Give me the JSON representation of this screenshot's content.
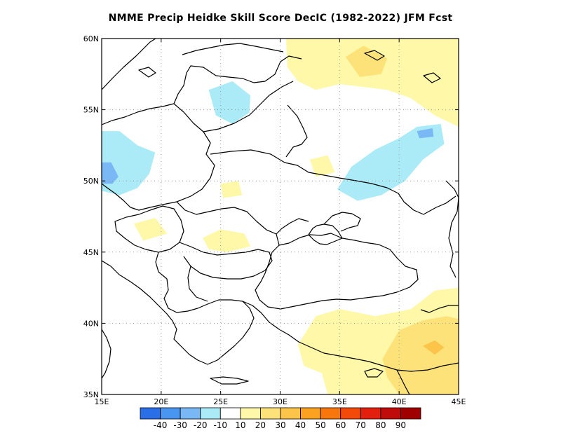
{
  "title": "NMME Precip Heidke Skill Score DecIC (1982-2022) JFM Fcst",
  "lon_ticks": [
    {
      "value": 15,
      "label": "15E"
    },
    {
      "value": 20,
      "label": "20E"
    },
    {
      "value": 25,
      "label": "25E"
    },
    {
      "value": 30,
      "label": "30E"
    },
    {
      "value": 35,
      "label": "35E"
    },
    {
      "value": 40,
      "label": "40E"
    },
    {
      "value": 45,
      "label": "45E"
    }
  ],
  "lat_ticks": [
    {
      "value": 35,
      "label": "35N"
    },
    {
      "value": 40,
      "label": "40N"
    },
    {
      "value": 45,
      "label": "45N"
    },
    {
      "value": 50,
      "label": "50N"
    },
    {
      "value": 55,
      "label": "55N"
    },
    {
      "value": 60,
      "label": "60N"
    }
  ],
  "map_extent": {
    "lon": [
      15,
      45
    ],
    "lat": [
      35,
      60
    ]
  },
  "legend": {
    "colors": [
      "#2b6fe8",
      "#4896f0",
      "#7ab8f5",
      "#aaebf7",
      "#ffffff",
      "#fef8a8",
      "#fde27a",
      "#fcc54a",
      "#fca221",
      "#f9760c",
      "#f34a0a",
      "#e2200d",
      "#c00b0b",
      "#a00000"
    ],
    "labels": [
      "-40",
      "-30",
      "-20",
      "-10",
      "10",
      "20",
      "30",
      "40",
      "50",
      "60",
      "70",
      "80",
      "90"
    ]
  },
  "chart_data": {
    "type": "heatmap",
    "title": "NMME Precip Heidke Skill Score DecIC (1982-2022) JFM Fcst",
    "x_range": [
      15,
      45
    ],
    "y_range": [
      35,
      60
    ],
    "grid": true,
    "regions": [
      {
        "category": "-10..-20",
        "color": "#aaebf7",
        "lon": [
          [
            15,
            53.5
          ],
          [
            16.5,
            53.5
          ],
          [
            18,
            52.5
          ],
          [
            19.5,
            52
          ],
          [
            19,
            50.5
          ],
          [
            18,
            49.5
          ],
          [
            16.5,
            49
          ],
          [
            15,
            49.3
          ]
        ]
      },
      {
        "category": "-20..-30",
        "color": "#7ab8f5",
        "lon": [
          [
            15,
            51.3
          ],
          [
            15.8,
            51.3
          ],
          [
            16.4,
            50.3
          ],
          [
            15.9,
            49.8
          ],
          [
            15,
            49.8
          ]
        ]
      },
      {
        "category": "-10..-20",
        "color": "#aaebf7",
        "lon": [
          [
            24,
            56.4
          ],
          [
            26,
            57
          ],
          [
            27.5,
            56
          ],
          [
            27.4,
            54.8
          ],
          [
            26,
            54
          ],
          [
            24.6,
            54.6
          ]
        ]
      },
      {
        "category": "-10..-20",
        "color": "#aaebf7",
        "lon": [
          [
            34.8,
            49.4
          ],
          [
            36,
            51
          ],
          [
            38,
            52.2
          ],
          [
            40,
            53
          ],
          [
            41.5,
            53.8
          ],
          [
            43.5,
            54
          ],
          [
            43.8,
            52.6
          ],
          [
            42,
            51.5
          ],
          [
            40.5,
            50
          ],
          [
            38.5,
            49
          ],
          [
            36.5,
            48.6
          ]
        ]
      },
      {
        "category": "-20..-30",
        "color": "#7ab8f5",
        "lon": [
          [
            41.5,
            53.5
          ],
          [
            42.8,
            53.7
          ],
          [
            42.9,
            53.1
          ],
          [
            41.7,
            53
          ]
        ]
      },
      {
        "category": "10..20",
        "color": "#fef8a8",
        "lon": [
          [
            30.5,
            60
          ],
          [
            45,
            60
          ],
          [
            45,
            53.8
          ],
          [
            43,
            54.6
          ],
          [
            41,
            55.8
          ],
          [
            39,
            56.4
          ],
          [
            37,
            56.6
          ],
          [
            35,
            56.8
          ],
          [
            33,
            56.4
          ],
          [
            31.5,
            57
          ],
          [
            30.6,
            58
          ]
        ]
      },
      {
        "category": "20..30",
        "color": "#fde27a",
        "lon": [
          [
            35.5,
            58.7
          ],
          [
            37,
            59.5
          ],
          [
            39,
            58.6
          ],
          [
            38.5,
            57.5
          ],
          [
            36.7,
            57.3
          ]
        ]
      },
      {
        "category": "10..20",
        "color": "#fef8a8",
        "lon": [
          [
            33,
            40.5
          ],
          [
            35,
            41
          ],
          [
            38,
            40.5
          ],
          [
            41,
            41
          ],
          [
            43,
            42.3
          ],
          [
            45,
            42.5
          ],
          [
            45,
            35
          ],
          [
            34,
            35
          ],
          [
            33.5,
            36.5
          ],
          [
            32,
            37
          ],
          [
            31.5,
            38.5
          ]
        ]
      },
      {
        "category": "20..30",
        "color": "#fde27a",
        "lon": [
          [
            40,
            39.5
          ],
          [
            42,
            40.2
          ],
          [
            44,
            40.5
          ],
          [
            45,
            40.3
          ],
          [
            45,
            35
          ],
          [
            40,
            35
          ],
          [
            39,
            36.2
          ],
          [
            38.6,
            37.5
          ]
        ]
      },
      {
        "category": "30..40",
        "color": "#fcc54a",
        "lon": [
          [
            42,
            38.4
          ],
          [
            43,
            38.8
          ],
          [
            43.8,
            38.3
          ],
          [
            43,
            37.8
          ]
        ]
      },
      {
        "category": "10..20",
        "color": "#fef8a8",
        "lon": [
          [
            23.5,
            46
          ],
          [
            25,
            46.6
          ],
          [
            27,
            46.3
          ],
          [
            27.5,
            45.4
          ],
          [
            25.5,
            45
          ],
          [
            24,
            45.2
          ]
        ]
      },
      {
        "category": "10..20",
        "color": "#fef8a8",
        "lon": [
          [
            32.5,
            51.5
          ],
          [
            34,
            51.8
          ],
          [
            34.6,
            50.6
          ],
          [
            33,
            50.3
          ]
        ]
      },
      {
        "category": "10..20",
        "color": "#fef8a8",
        "lon": [
          [
            25,
            49.8
          ],
          [
            26.5,
            50
          ],
          [
            26.8,
            49
          ],
          [
            25.2,
            48.8
          ]
        ]
      },
      {
        "category": "10..20",
        "color": "#fef8a8",
        "lon": [
          [
            17.7,
            47
          ],
          [
            19.5,
            47.4
          ],
          [
            20.5,
            46.3
          ],
          [
            18.5,
            45.8
          ]
        ]
      }
    ]
  }
}
